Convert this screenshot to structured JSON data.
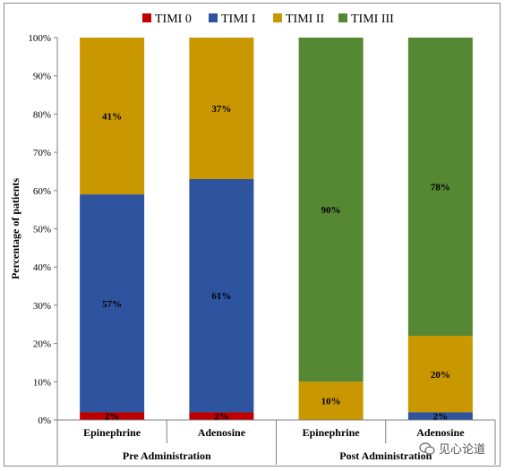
{
  "chart_data": {
    "type": "bar",
    "stacked": true,
    "title": "",
    "ylabel": "Percentage of patients",
    "xlabel": "",
    "ylim": [
      0,
      100
    ],
    "yticks": [
      "0%",
      "10%",
      "20%",
      "30%",
      "40%",
      "50%",
      "60%",
      "70%",
      "80%",
      "90%",
      "100%"
    ],
    "grid": false,
    "legend_position": "top",
    "groups": [
      {
        "label": "Pre Administration",
        "categories": [
          "Epinephrine",
          "Adenosine"
        ]
      },
      {
        "label": "Post Administration",
        "categories": [
          "Epinephrine",
          "Adenosine"
        ]
      }
    ],
    "categories": [
      "Epinephrine",
      "Adenosine",
      "Epinephrine",
      "Adenosine"
    ],
    "series": [
      {
        "name": "TIMI 0",
        "color": "#c00000",
        "values": [
          2,
          2,
          0,
          0
        ],
        "labels": [
          "2%",
          "2%",
          "",
          ""
        ]
      },
      {
        "name": "TIMI I",
        "color": "#2e54a0",
        "values": [
          57,
          61,
          0,
          2
        ],
        "labels": [
          "57%",
          "61%",
          "",
          "2%"
        ]
      },
      {
        "name": "TIMI II",
        "color": "#c99700",
        "values": [
          41,
          37,
          10,
          20
        ],
        "labels": [
          "41%",
          "37%",
          "10%",
          "20%"
        ]
      },
      {
        "name": "TIMI III",
        "color": "#568733",
        "values": [
          0,
          0,
          90,
          78
        ],
        "labels": [
          "",
          "",
          "90%",
          "78%"
        ]
      }
    ]
  },
  "watermark": {
    "text": "见心论道",
    "icon": "wechat-icon"
  }
}
